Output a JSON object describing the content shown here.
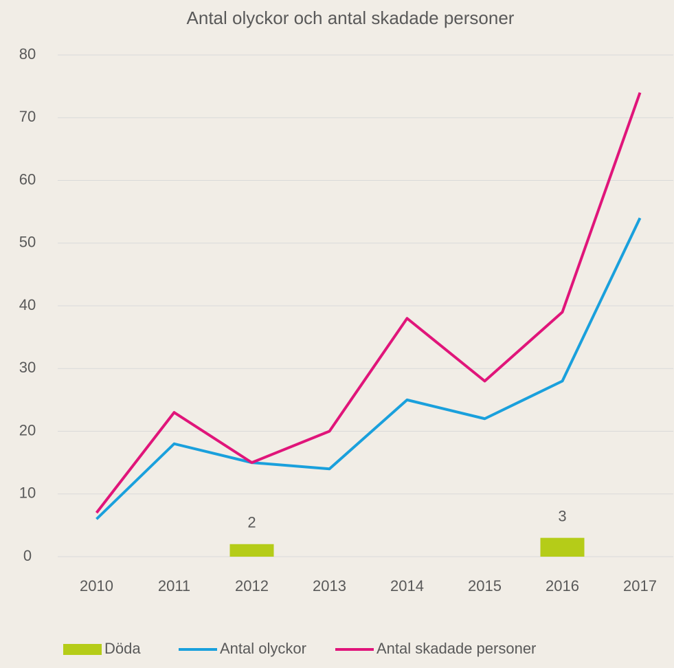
{
  "chart_data": {
    "type": "bar_line",
    "title": "Antal olyckor och antal skadade personer",
    "categories": [
      "2010",
      "2011",
      "2012",
      "2013",
      "2014",
      "2015",
      "2016",
      "2017"
    ],
    "series": [
      {
        "name": "Döda",
        "type": "bar",
        "color": "#b5cc18",
        "values": [
          null,
          null,
          2,
          null,
          null,
          null,
          3,
          null
        ]
      },
      {
        "name": "Antal olyckor",
        "type": "line",
        "color": "#1aa0dc",
        "values": [
          6,
          18,
          15,
          14,
          25,
          22,
          28,
          54
        ]
      },
      {
        "name": "Antal skadade personer",
        "type": "line",
        "color": "#e0157a",
        "values": [
          7,
          23,
          15,
          20,
          38,
          28,
          39,
          74
        ]
      }
    ],
    "ylim": [
      0,
      80
    ],
    "yticks": [
      0,
      10,
      20,
      30,
      40,
      50,
      60,
      70,
      80
    ],
    "grid": true,
    "legend": "bottom"
  }
}
